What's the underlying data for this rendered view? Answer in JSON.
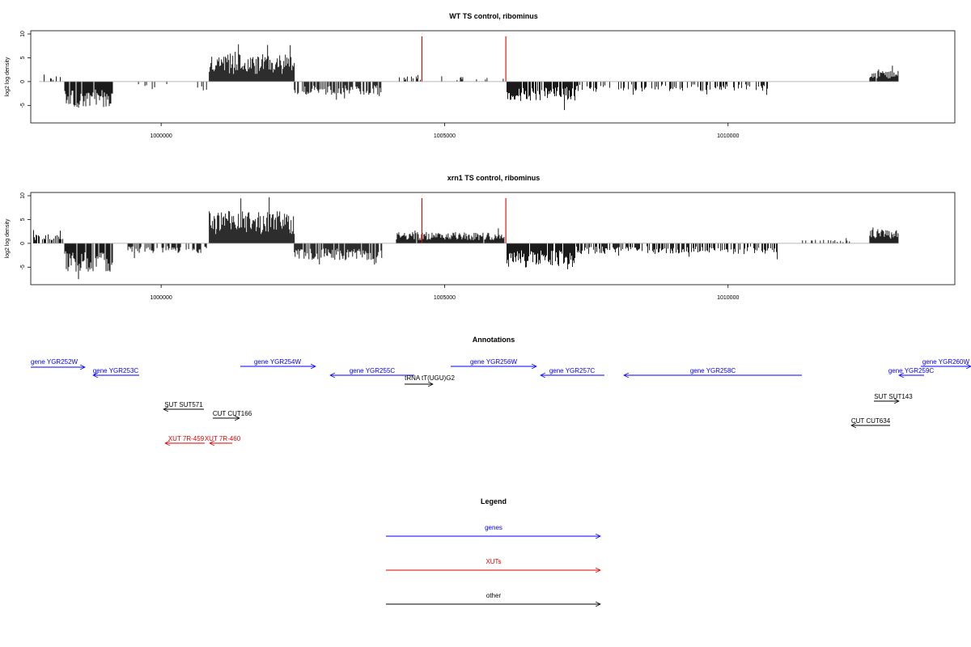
{
  "chart_data": [
    {
      "type": "bar",
      "title": "WT TS control, ribominus",
      "xlabel": "",
      "ylabel": "log2 log density",
      "xlim": [
        997700,
        1014000
      ],
      "ylim": [
        -8,
        10
      ],
      "xticks": [
        1000000,
        1005000,
        1010000
      ],
      "xtick_labels": [
        "1000000",
        "1005000",
        "1010000"
      ],
      "yticks": [
        -5,
        0,
        5,
        10
      ],
      "ytick_labels": [
        "-5",
        "0",
        "5",
        "10"
      ],
      "grid": false,
      "baseline_color": "#a0a0a0",
      "bar_color": "#000000",
      "marker_color": "#e00000",
      "markers": [
        1004600,
        1006080
      ],
      "marker_height": 9.5,
      "regions": [
        {
          "start": 997850,
          "end": 997950,
          "level": 1.2,
          "density": 0.3
        },
        {
          "start": 998050,
          "end": 998230,
          "level": 0.9,
          "density": 0.4
        },
        {
          "start": 998300,
          "end": 999150,
          "level": -4.5,
          "density": 0.9
        },
        {
          "start": 999600,
          "end": 999900,
          "level": -1.5,
          "density": 0.2
        },
        {
          "start": 1000000,
          "end": 1000200,
          "level": -1.2,
          "density": 0.2
        },
        {
          "start": 1000600,
          "end": 1000800,
          "level": -1.5,
          "density": 0.2
        },
        {
          "start": 1000850,
          "end": 1002350,
          "level": 4.6,
          "density": 1
        },
        {
          "start": 1002350,
          "end": 1003900,
          "level": -2.2,
          "density": 0.7
        },
        {
          "start": 1004200,
          "end": 1004650,
          "level": 0.9,
          "density": 0.25
        },
        {
          "start": 1004650,
          "end": 1006050,
          "level": 0.9,
          "density": 0.1
        },
        {
          "start": 1006100,
          "end": 1007300,
          "level": -3.2,
          "density": 0.85
        },
        {
          "start": 1007300,
          "end": 1010700,
          "level": -1.6,
          "density": 0.35
        },
        {
          "start": 1011600,
          "end": 1011750,
          "level": 0.8,
          "density": 0.2
        },
        {
          "start": 1012500,
          "end": 1013000,
          "level": 1.9,
          "density": 0.95
        }
      ]
    },
    {
      "type": "bar",
      "title": "xrn1 TS control, ribominus",
      "xlabel": "",
      "ylabel": "log2 log density",
      "xlim": [
        997700,
        1014000
      ],
      "ylim": [
        -8,
        10
      ],
      "xticks": [
        1000000,
        1005000,
        1010000
      ],
      "xtick_labels": [
        "1000000",
        "1005000",
        "1010000"
      ],
      "yticks": [
        -5,
        0,
        5,
        10
      ],
      "ytick_labels": [
        "-5",
        "0",
        "5",
        "10"
      ],
      "grid": false,
      "baseline_color": "#a0a0a0",
      "bar_color": "#000000",
      "marker_color": "#e00000",
      "markers": [
        1004600,
        1006080
      ],
      "marker_height": 9.5,
      "regions": [
        {
          "start": 997750,
          "end": 998300,
          "level": 1.5,
          "density": 0.6
        },
        {
          "start": 998300,
          "end": 999150,
          "level": -4.8,
          "density": 0.95
        },
        {
          "start": 999400,
          "end": 1000800,
          "level": -1.7,
          "density": 0.5
        },
        {
          "start": 1000850,
          "end": 1002350,
          "level": 5.5,
          "density": 1
        },
        {
          "start": 1002350,
          "end": 1003900,
          "level": -2.8,
          "density": 0.85
        },
        {
          "start": 1004150,
          "end": 1006050,
          "level": 1.9,
          "density": 0.95
        },
        {
          "start": 1006100,
          "end": 1007300,
          "level": -4.0,
          "density": 0.95
        },
        {
          "start": 1007300,
          "end": 1010900,
          "level": -1.8,
          "density": 0.6
        },
        {
          "start": 1011300,
          "end": 1012200,
          "level": 0.6,
          "density": 0.3
        },
        {
          "start": 1012500,
          "end": 1013000,
          "level": 2.4,
          "density": 1
        }
      ]
    }
  ],
  "annotations": {
    "title": "Annotations",
    "genes_color": "#0000ff",
    "xuts_color": "#e00000",
    "other_color": "#000000",
    "items": [
      {
        "label": "gene YGR252W",
        "kind": "genes",
        "dir": "right",
        "label_align": "start"
      },
      {
        "label": "gene YGR253C",
        "kind": "genes",
        "dir": "left"
      },
      {
        "label": "gene YGR254W",
        "kind": "genes",
        "dir": "right"
      },
      {
        "label": "gene YGR255C",
        "kind": "genes",
        "dir": "left"
      },
      {
        "label": "tRNA tT(UGU)G2",
        "kind": "other",
        "dir": "right"
      },
      {
        "label": "gene YGR256W",
        "kind": "genes",
        "dir": "right"
      },
      {
        "label": "gene YGR257C",
        "kind": "genes",
        "dir": "left"
      },
      {
        "label": "gene YGR258C",
        "kind": "genes",
        "dir": "left"
      },
      {
        "label": "gene YGR259C",
        "kind": "genes",
        "dir": "left"
      },
      {
        "label": "gene YGR260W",
        "kind": "genes",
        "dir": "right",
        "label_align": "end"
      },
      {
        "label": "SUT SUT571",
        "kind": "other",
        "dir": "left"
      },
      {
        "label": "CUT CUT166",
        "kind": "other",
        "dir": "right"
      },
      {
        "label": "XUT 7R-459",
        "kind": "xuts",
        "dir": "left"
      },
      {
        "label": "XUT 7R-460",
        "kind": "xuts",
        "dir": "left"
      },
      {
        "label": "SUT SUT143",
        "kind": "other",
        "dir": "right"
      },
      {
        "label": "CUT CUT634",
        "kind": "other",
        "dir": "left"
      }
    ]
  },
  "legend": {
    "title": "Legend",
    "entries": [
      {
        "label": "genes",
        "color": "#0000ff"
      },
      {
        "label": "XUTs",
        "color": "#e00000"
      },
      {
        "label": "other",
        "color": "#000000"
      }
    ]
  }
}
